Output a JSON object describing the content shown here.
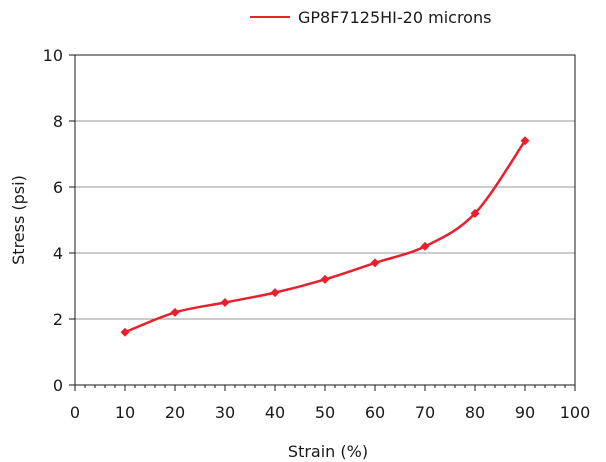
{
  "chart_data": {
    "type": "line",
    "title": "",
    "xlabel": "Strain (%)",
    "ylabel": "Stress (psi)",
    "xlim": [
      0,
      100
    ],
    "ylim": [
      0,
      10
    ],
    "x_ticks": [
      "0",
      "10",
      "20",
      "30",
      "40",
      "50",
      "60",
      "70",
      "80",
      "90",
      "100"
    ],
    "y_ticks": [
      "0",
      "2",
      "4",
      "6",
      "8",
      "10"
    ],
    "grid": "horizontal",
    "legend_position": "top-right",
    "series": [
      {
        "name": "GP8F7125HI-20 microns",
        "color": "#e8202e",
        "marker": "diamond",
        "smooth": true,
        "x": [
          10,
          20,
          30,
          40,
          50,
          60,
          70,
          80,
          90
        ],
        "y": [
          1.6,
          2.2,
          2.5,
          2.8,
          3.2,
          3.7,
          4.2,
          5.2,
          7.4
        ]
      }
    ]
  }
}
